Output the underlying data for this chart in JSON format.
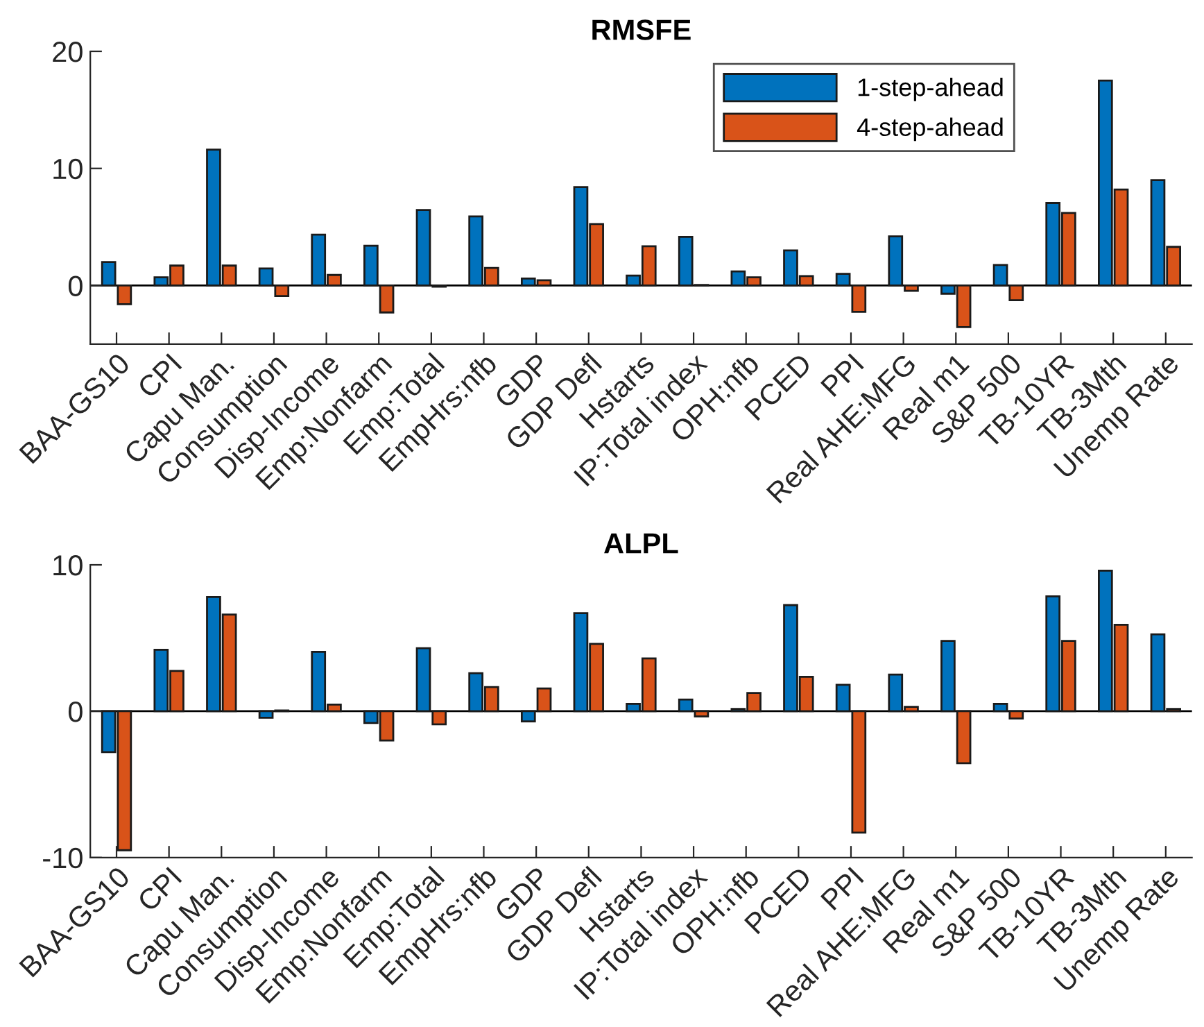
{
  "chart_data": [
    {
      "type": "bar",
      "title": "RMSFE",
      "categories": [
        "BAA-GS10",
        "CPI",
        "Capu Man.",
        "Consumption",
        "Disp-Income",
        "Emp:Nonfarm",
        "Emp:Total",
        "EmpHrs:nfb",
        "GDP",
        "GDP Defl",
        "Hstarts",
        "IP:Total index",
        "OPH:nfb",
        "PCED",
        "PPI",
        "Real AHE:MFG",
        "Real m1",
        "S&P 500",
        "TB-10YR",
        "TB-3Mth",
        "Unemp Rate"
      ],
      "series": [
        {
          "name": "1-step-ahead",
          "color": "#0072bd",
          "values": [
            2.0,
            0.7,
            11.6,
            1.45,
            4.35,
            3.4,
            6.45,
            5.9,
            0.6,
            8.4,
            0.85,
            4.15,
            1.2,
            3.0,
            1.0,
            4.2,
            -0.7,
            1.75,
            7.05,
            17.5,
            9.0
          ]
        },
        {
          "name": "4-step-ahead",
          "color": "#d95319",
          "values": [
            -1.6,
            1.7,
            1.7,
            -0.9,
            0.9,
            -2.3,
            -0.1,
            1.5,
            0.45,
            5.25,
            3.35,
            0.05,
            0.7,
            0.8,
            -2.25,
            -0.45,
            -3.55,
            -1.25,
            6.2,
            8.2,
            3.3
          ]
        }
      ],
      "ylim": [
        -5,
        20
      ],
      "yticks": [
        0,
        10,
        20
      ],
      "legend": "top right",
      "ref_lines": [
        {
          "axis": "y",
          "value": 0,
          "color": "#000000"
        }
      ]
    },
    {
      "type": "bar",
      "title": "ALPL",
      "categories": [
        "BAA-GS10",
        "CPI",
        "Capu Man.",
        "Consumption",
        "Disp-Income",
        "Emp:Nonfarm",
        "Emp:Total",
        "EmpHrs:nfb",
        "GDP",
        "GDP Defl",
        "Hstarts",
        "IP:Total index",
        "OPH:nfb",
        "PCED",
        "PPI",
        "Real AHE:MFG",
        "Real m1",
        "S&P 500",
        "TB-10YR",
        "TB-3Mth",
        "Unemp Rate"
      ],
      "series": [
        {
          "color": "#0072bd",
          "values": [
            -2.8,
            4.2,
            7.8,
            -0.45,
            4.05,
            -0.8,
            4.3,
            2.6,
            -0.7,
            6.7,
            0.5,
            0.8,
            0.15,
            7.25,
            1.8,
            2.5,
            4.8,
            0.5,
            7.85,
            9.6,
            5.25
          ]
        },
        {
          "color": "#d95319",
          "values": [
            -9.5,
            2.75,
            6.6,
            0.05,
            0.45,
            -2.0,
            -0.9,
            1.65,
            1.55,
            4.6,
            3.6,
            -0.35,
            1.25,
            2.35,
            -8.3,
            0.3,
            -3.55,
            -0.5,
            4.8,
            5.9,
            0.15
          ]
        }
      ],
      "ylim": [
        -10,
        10
      ],
      "yticks": [
        {
          "value": -10,
          "label": "-10"
        },
        0,
        10
      ],
      "legend": false,
      "ref_lines": [
        {
          "axis": "y",
          "value": 0,
          "color": "#000000"
        }
      ]
    }
  ]
}
